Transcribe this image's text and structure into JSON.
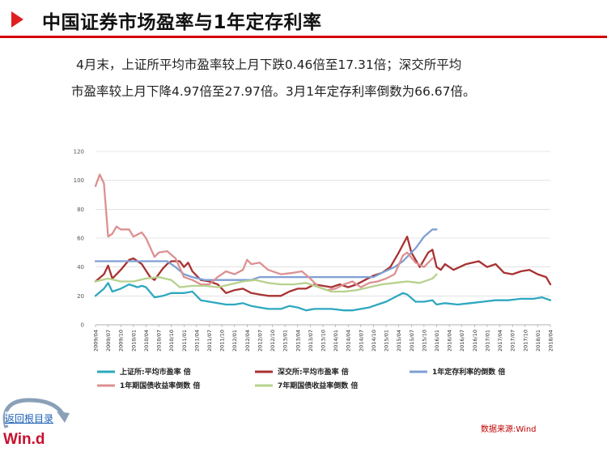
{
  "header": {
    "title": "中国证券市场盈率与1年定存利率"
  },
  "summary": {
    "line1": "4月末，上证所平均市盈率较上月下跌0.46倍至17.31倍；深交所平均",
    "line2": "市盈率较上月下降4.97倍至27.97倍。3月1年定存利率倒数为66.67倍。"
  },
  "footer": {
    "back_label": "返回根目录",
    "logo_text": "Win.d",
    "source": "数据来源:Wind"
  },
  "colors": {
    "sse": "#2ea8bf",
    "szse": "#a83232",
    "deposit": "#7f9fd4",
    "bond": "#dd9090",
    "bond7": "#b8d18f"
  },
  "chart_data": {
    "type": "line",
    "title": "",
    "xlabel": "",
    "ylabel": "",
    "ylim": [
      0,
      120
    ],
    "yticks": [
      0,
      20,
      40,
      60,
      80,
      100,
      120
    ],
    "grid": "horizontal",
    "legend_position": "bottom",
    "x_start": "2009/04",
    "x_end": "2018/04",
    "x_labels": [
      "2009/04",
      "2009/07",
      "2009/10",
      "2010/01",
      "2010/04",
      "2010/07",
      "2010/10",
      "2011/01",
      "2011/04",
      "2011/07",
      "2011/10",
      "2012/01",
      "2012/04",
      "2012/07",
      "2012/10",
      "2013/01",
      "2013/04",
      "2013/07",
      "2013/10",
      "2014/01",
      "2014/04",
      "2014/07",
      "2014/10",
      "2015/01",
      "2015/04",
      "2015/07",
      "2015/10",
      "2016/01",
      "2016/04",
      "2016/07",
      "2016/10",
      "2017/01",
      "2017/04",
      "2017/07",
      "2017/10",
      "2018/01",
      "2018/04"
    ],
    "series": [
      {
        "name": "上证所:平均市盈率 倍",
        "color": "#2ea8bf",
        "points": [
          [
            "2009/04",
            20
          ],
          [
            "2009/06",
            25
          ],
          [
            "2009/07",
            29
          ],
          [
            "2009/08",
            23
          ],
          [
            "2009/10",
            25
          ],
          [
            "2009/12",
            28
          ],
          [
            "2010/02",
            26
          ],
          [
            "2010/03",
            27
          ],
          [
            "2010/04",
            26
          ],
          [
            "2010/06",
            19
          ],
          [
            "2010/08",
            20
          ],
          [
            "2010/10",
            22
          ],
          [
            "2011/01",
            22
          ],
          [
            "2011/03",
            23
          ],
          [
            "2011/05",
            17
          ],
          [
            "2011/07",
            16
          ],
          [
            "2011/09",
            15
          ],
          [
            "2011/11",
            14
          ],
          [
            "2012/01",
            14
          ],
          [
            "2012/03",
            15
          ],
          [
            "2012/05",
            13
          ],
          [
            "2012/07",
            12
          ],
          [
            "2012/09",
            11
          ],
          [
            "2012/12",
            11
          ],
          [
            "2013/02",
            13
          ],
          [
            "2013/04",
            12
          ],
          [
            "2013/06",
            10
          ],
          [
            "2013/08",
            11
          ],
          [
            "2013/10",
            11
          ],
          [
            "2013/12",
            11
          ],
          [
            "2014/03",
            10
          ],
          [
            "2014/05",
            10
          ],
          [
            "2014/07",
            11
          ],
          [
            "2014/09",
            12
          ],
          [
            "2014/11",
            14
          ],
          [
            "2015/01",
            16
          ],
          [
            "2015/03",
            19
          ],
          [
            "2015/05",
            22
          ],
          [
            "2015/06",
            21
          ],
          [
            "2015/08",
            16
          ],
          [
            "2015/10",
            16
          ],
          [
            "2015/12",
            17
          ],
          [
            "2016/01",
            14
          ],
          [
            "2016/03",
            15
          ],
          [
            "2016/06",
            14
          ],
          [
            "2016/09",
            15
          ],
          [
            "2016/12",
            16
          ],
          [
            "2017/03",
            17
          ],
          [
            "2017/06",
            17
          ],
          [
            "2017/09",
            18
          ],
          [
            "2017/12",
            18
          ],
          [
            "2018/02",
            19
          ],
          [
            "2018/04",
            17
          ]
        ]
      },
      {
        "name": "深交所:平均市盈率 倍",
        "color": "#a83232",
        "points": [
          [
            "2009/04",
            30
          ],
          [
            "2009/06",
            35
          ],
          [
            "2009/07",
            41
          ],
          [
            "2009/08",
            32
          ],
          [
            "2009/10",
            38
          ],
          [
            "2009/12",
            45
          ],
          [
            "2010/01",
            46
          ],
          [
            "2010/03",
            42
          ],
          [
            "2010/05",
            33
          ],
          [
            "2010/06",
            31
          ],
          [
            "2010/08",
            39
          ],
          [
            "2010/09",
            42
          ],
          [
            "2010/10",
            44
          ],
          [
            "2010/12",
            44
          ],
          [
            "2011/01",
            40
          ],
          [
            "2011/02",
            43
          ],
          [
            "2011/03",
            37
          ],
          [
            "2011/05",
            31
          ],
          [
            "2011/07",
            30
          ],
          [
            "2011/09",
            28
          ],
          [
            "2011/11",
            22
          ],
          [
            "2012/01",
            24
          ],
          [
            "2012/03",
            25
          ],
          [
            "2012/05",
            22
          ],
          [
            "2012/07",
            21
          ],
          [
            "2012/09",
            20
          ],
          [
            "2012/12",
            20
          ],
          [
            "2013/02",
            23
          ],
          [
            "2013/04",
            25
          ],
          [
            "2013/06",
            25
          ],
          [
            "2013/08",
            28
          ],
          [
            "2013/10",
            27
          ],
          [
            "2013/12",
            26
          ],
          [
            "2014/02",
            28
          ],
          [
            "2014/04",
            26
          ],
          [
            "2014/06",
            28
          ],
          [
            "2014/08",
            31
          ],
          [
            "2014/10",
            34
          ],
          [
            "2014/12",
            36
          ],
          [
            "2015/02",
            40
          ],
          [
            "2015/04",
            50
          ],
          [
            "2015/06",
            61
          ],
          [
            "2015/07",
            50
          ],
          [
            "2015/09",
            40
          ],
          [
            "2015/10",
            45
          ],
          [
            "2015/11",
            50
          ],
          [
            "2015/12",
            52
          ],
          [
            "2016/01",
            40
          ],
          [
            "2016/02",
            38
          ],
          [
            "2016/03",
            42
          ],
          [
            "2016/05",
            38
          ],
          [
            "2016/08",
            42
          ],
          [
            "2016/11",
            44
          ],
          [
            "2017/01",
            40
          ],
          [
            "2017/03",
            42
          ],
          [
            "2017/05",
            36
          ],
          [
            "2017/07",
            35
          ],
          [
            "2017/09",
            37
          ],
          [
            "2017/11",
            38
          ],
          [
            "2018/01",
            35
          ],
          [
            "2018/03",
            33
          ],
          [
            "2018/04",
            28
          ]
        ]
      },
      {
        "name": "1年定存利率的倒数 倍",
        "color": "#7f9fd4",
        "points": [
          [
            "2009/04",
            44
          ],
          [
            "2010/09",
            44
          ],
          [
            "2010/11",
            40
          ],
          [
            "2011/01",
            35
          ],
          [
            "2011/03",
            33
          ],
          [
            "2011/06",
            31
          ],
          [
            "2011/09",
            31
          ],
          [
            "2012/05",
            31
          ],
          [
            "2012/07",
            33
          ],
          [
            "2014/10",
            33
          ],
          [
            "2014/12",
            36
          ],
          [
            "2015/03",
            40
          ],
          [
            "2015/05",
            44
          ],
          [
            "2015/07",
            50
          ],
          [
            "2015/08",
            53
          ],
          [
            "2015/09",
            57
          ],
          [
            "2015/10",
            61
          ],
          [
            "2015/12",
            66
          ],
          [
            "2016/01",
            66
          ]
        ]
      },
      {
        "name": "1年期国债收益率倒数 倍",
        "color": "#dd9090",
        "points": [
          [
            "2009/04",
            96
          ],
          [
            "2009/05",
            104
          ],
          [
            "2009/06",
            98
          ],
          [
            "2009/07",
            61
          ],
          [
            "2009/08",
            63
          ],
          [
            "2009/09",
            68
          ],
          [
            "2009/10",
            66
          ],
          [
            "2009/12",
            66
          ],
          [
            "2010/01",
            61
          ],
          [
            "2010/03",
            64
          ],
          [
            "2010/04",
            60
          ],
          [
            "2010/06",
            47
          ],
          [
            "2010/07",
            50
          ],
          [
            "2010/09",
            51
          ],
          [
            "2010/11",
            46
          ],
          [
            "2011/01",
            33
          ],
          [
            "2011/03",
            31
          ],
          [
            "2011/05",
            28
          ],
          [
            "2011/07",
            28
          ],
          [
            "2011/09",
            33
          ],
          [
            "2011/11",
            37
          ],
          [
            "2012/01",
            35
          ],
          [
            "2012/03",
            38
          ],
          [
            "2012/04",
            45
          ],
          [
            "2012/05",
            42
          ],
          [
            "2012/07",
            43
          ],
          [
            "2012/09",
            38
          ],
          [
            "2012/12",
            35
          ],
          [
            "2013/03",
            36
          ],
          [
            "2013/05",
            37
          ],
          [
            "2013/07",
            32
          ],
          [
            "2013/09",
            26
          ],
          [
            "2013/11",
            24
          ],
          [
            "2014/01",
            25
          ],
          [
            "2014/03",
            28
          ],
          [
            "2014/05",
            30
          ],
          [
            "2014/07",
            26
          ],
          [
            "2014/09",
            29
          ],
          [
            "2014/11",
            30
          ],
          [
            "2015/01",
            32
          ],
          [
            "2015/03",
            35
          ],
          [
            "2015/05",
            48
          ],
          [
            "2015/06",
            50
          ],
          [
            "2015/08",
            43
          ],
          [
            "2015/10",
            40
          ],
          [
            "2015/12",
            46
          ]
        ]
      },
      {
        "name": "7年期国债收益率倒数 倍",
        "color": "#b8d18f",
        "points": [
          [
            "2009/04",
            30
          ],
          [
            "2009/07",
            32
          ],
          [
            "2009/10",
            30
          ],
          [
            "2010/01",
            30
          ],
          [
            "2010/04",
            32
          ],
          [
            "2010/07",
            33
          ],
          [
            "2010/10",
            31
          ],
          [
            "2010/12",
            26
          ],
          [
            "2011/03",
            27
          ],
          [
            "2011/06",
            27
          ],
          [
            "2011/09",
            26
          ],
          [
            "2011/12",
            28
          ],
          [
            "2012/03",
            30
          ],
          [
            "2012/06",
            31
          ],
          [
            "2012/09",
            29
          ],
          [
            "2012/12",
            28
          ],
          [
            "2013/03",
            28
          ],
          [
            "2013/06",
            29
          ],
          [
            "2013/09",
            26
          ],
          [
            "2013/12",
            23
          ],
          [
            "2014/03",
            23
          ],
          [
            "2014/06",
            24
          ],
          [
            "2014/09",
            26
          ],
          [
            "2014/12",
            28
          ],
          [
            "2015/03",
            29
          ],
          [
            "2015/06",
            30
          ],
          [
            "2015/09",
            29
          ],
          [
            "2015/12",
            32
          ],
          [
            "2016/01",
            35
          ]
        ]
      }
    ]
  }
}
